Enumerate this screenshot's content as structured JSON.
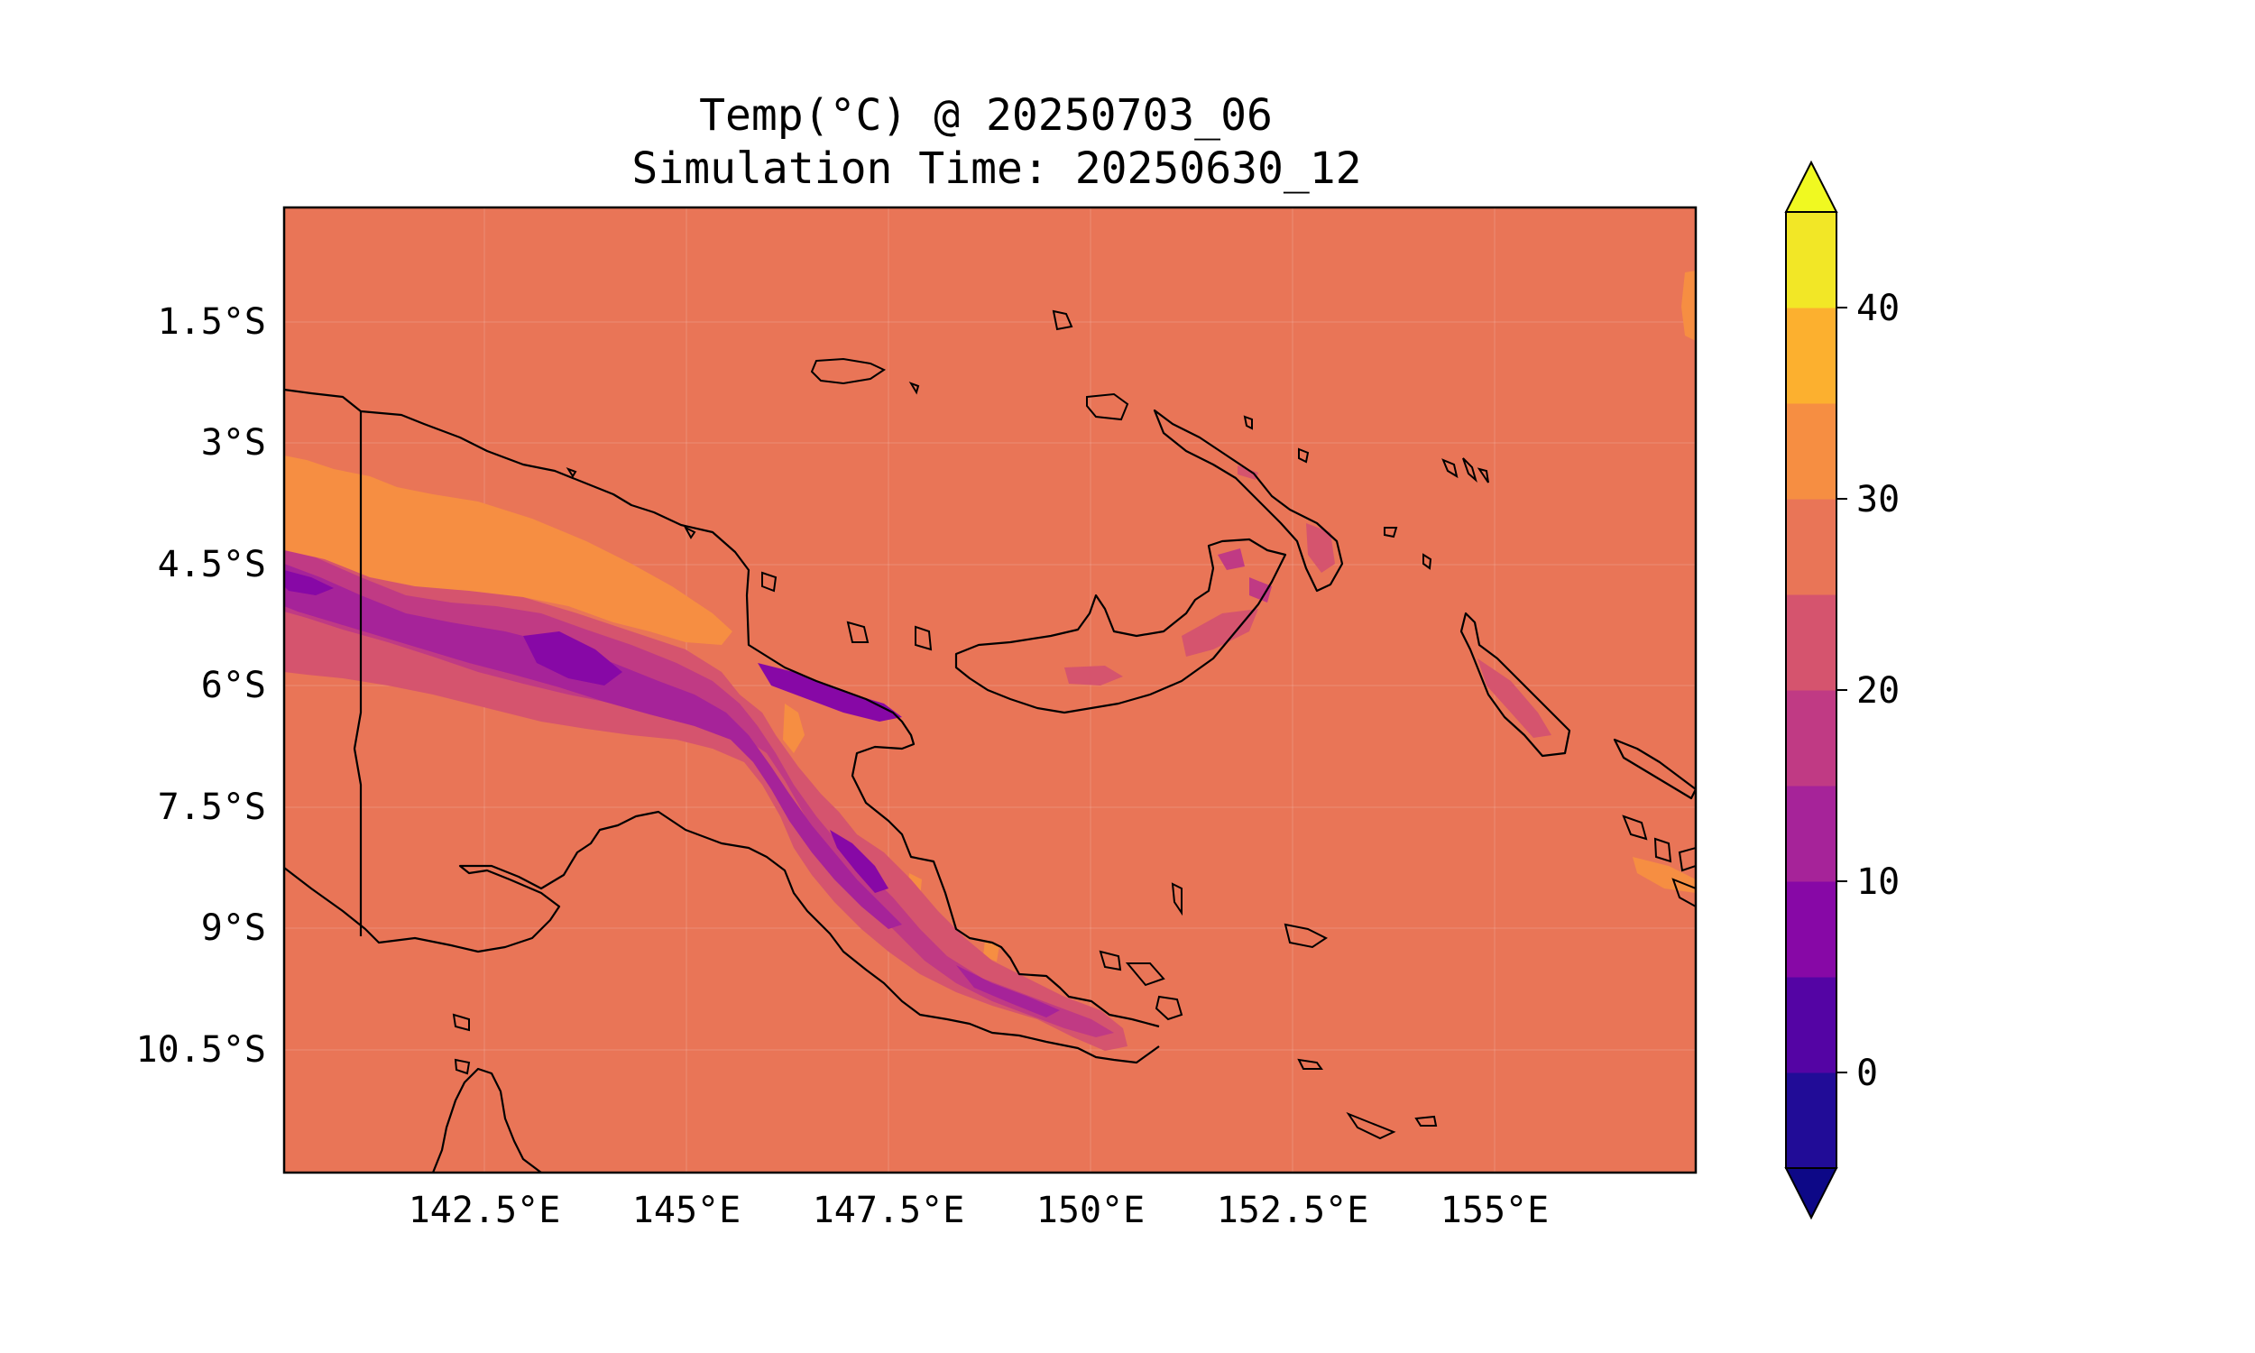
{
  "map": {
    "title_line1": "Temp(°C) @ 20250703_06",
    "title_line2": "Simulation Time: 20250630_12",
    "lon_ticks": [
      "142.5°E",
      "145°E",
      "147.5°E",
      "150°E",
      "152.5°E",
      "155°E"
    ],
    "lat_ticks": [
      "1.5°S",
      "3°S",
      "4.5°S",
      "6°S",
      "7.5°S",
      "9°S",
      "10.5°S"
    ],
    "background_color": "#e97557",
    "region": "Papua New Guinea"
  },
  "colorbar": {
    "tick_labels": [
      "0",
      "10",
      "20",
      "30",
      "40"
    ],
    "levels": [
      -5,
      0,
      5,
      10,
      15,
      20,
      25,
      30,
      35,
      40,
      45
    ],
    "colors": [
      "#210c97",
      "#5404a4",
      "#8708a6",
      "#a62399",
      "#c03a84",
      "#d5546e",
      "#e97557",
      "#f68e42",
      "#fcb02f",
      "#f2e726"
    ],
    "under_color": "#0d0887",
    "over_color": "#f0f921"
  }
}
